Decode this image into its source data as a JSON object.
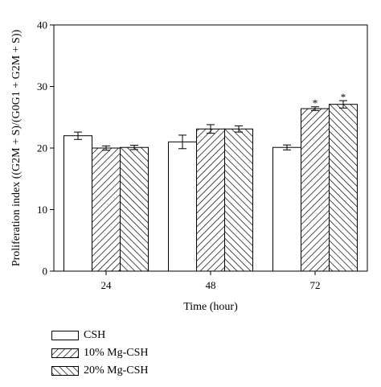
{
  "chart_data": {
    "type": "bar",
    "xlabel": "Time (hour)",
    "ylabel": "Proliferation index ((G2M + S)/(G0G1 + G2M + S))",
    "ylim": [
      0,
      40
    ],
    "yticks": [
      "0",
      "10",
      "20",
      "30",
      "40"
    ],
    "categories": [
      "24",
      "48",
      "72"
    ],
    "series": [
      {
        "name": "CSH",
        "values": [
          22.0,
          21.0,
          20.1
        ],
        "errors": [
          0.6,
          1.1,
          0.4
        ],
        "pattern": "none"
      },
      {
        "name": "10% Mg-CSH",
        "values": [
          20.0,
          23.1,
          26.4
        ],
        "errors": [
          0.35,
          0.7,
          0.3
        ],
        "pattern": "forward-hatch"
      },
      {
        "name": "20% Mg-CSH",
        "values": [
          20.1,
          23.1,
          27.1
        ],
        "errors": [
          0.35,
          0.5,
          0.6
        ],
        "pattern": "back-hatch"
      }
    ],
    "annotations": [
      {
        "text": "*",
        "category": "72",
        "series": "10% Mg-CSH"
      },
      {
        "text": "*",
        "category": "72",
        "series": "20% Mg-CSH"
      }
    ],
    "legend_placement": "bottom-left",
    "grid": false
  }
}
